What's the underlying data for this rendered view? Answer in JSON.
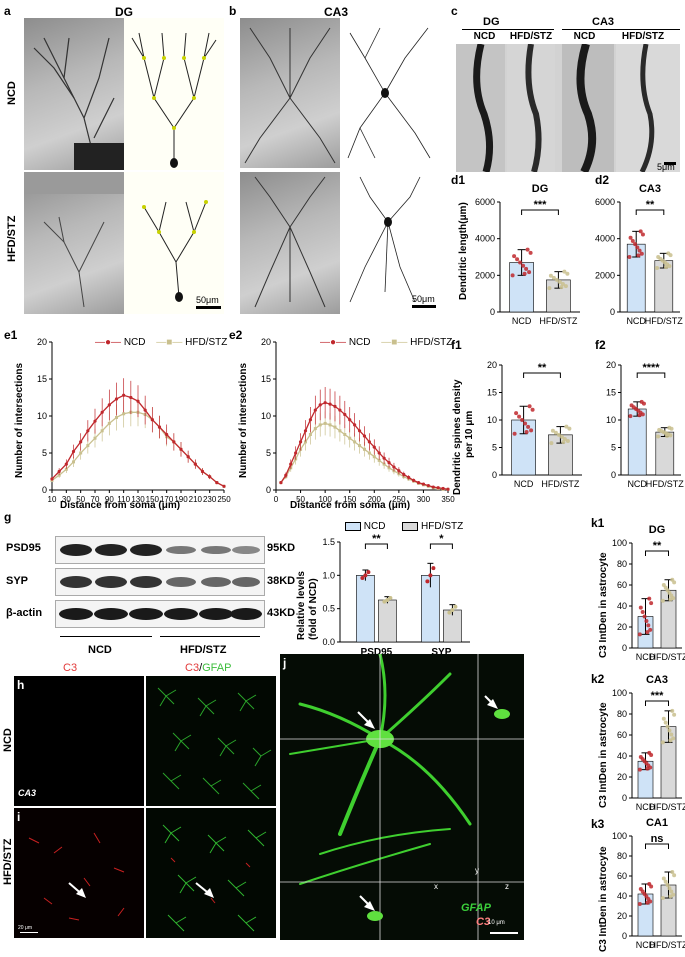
{
  "panel_a": {
    "letter": "a",
    "region": "DG",
    "row_ncd": "NCD",
    "row_hfd": "HFD/STZ",
    "scale": "50μm"
  },
  "panel_b": {
    "letter": "b",
    "region": "CA3",
    "scale": "50μm"
  },
  "panel_c": {
    "letter": "c",
    "group_dg": "DG",
    "group_ca3": "CA3",
    "cols": [
      "NCD",
      "HFD/STZ",
      "NCD",
      "HFD/STZ"
    ],
    "scale": "5μm"
  },
  "panel_d1": {
    "letter": "d1",
    "title": "DG",
    "ylabel": "Dendritic length(μm)",
    "sig": "***"
  },
  "panel_d2": {
    "letter": "d2",
    "title": "CA3",
    "sig": "**"
  },
  "panel_e1": {
    "letter": "e1",
    "ylabel": "Number of intersections",
    "xlabel": "Distance from soma (μm)"
  },
  "panel_e2": {
    "letter": "e2",
    "ylabel": "Number of intersections",
    "xlabel": "Distance from soma (μm)"
  },
  "panel_f1": {
    "letter": "f1",
    "ylabel1": "Dendritic spines density",
    "ylabel2": "per 10 μm",
    "sig": "**"
  },
  "panel_f2": {
    "letter": "f2",
    "sig": "****"
  },
  "panel_g": {
    "letter": "g",
    "rows": [
      {
        "name": "PSD95",
        "kd": "95KD"
      },
      {
        "name": "SYP",
        "kd": "38KD"
      },
      {
        "name": "β-actin",
        "kd": "43KD"
      }
    ],
    "group_ncd": "NCD",
    "group_hfd": "HFD/STZ",
    "ylabel1": "Relative levels",
    "ylabel2": "(fold of NCD)",
    "sig_psd": "**",
    "sig_syp": "*"
  },
  "panel_k1": {
    "letter": "k1",
    "title": "DG",
    "sig": "**"
  },
  "panel_k2": {
    "letter": "k2",
    "title": "CA3",
    "sig": "***"
  },
  "panel_k3": {
    "letter": "k3",
    "title": "CA1",
    "sig": "ns"
  },
  "k_ylabel": "C3 IntDen in astrocyte",
  "panel_h": {
    "letter": "h",
    "c3": "C3",
    "c3gfap_c3": "C3",
    "c3gfap_slash": "/",
    "c3gfap_gfap": "GFAP",
    "row_ncd": "NCD",
    "row_hfd": "HFD/STZ",
    "ca3": "CA3",
    "scale": "20 μm"
  },
  "panel_i": {
    "letter": "i"
  },
  "panel_j": {
    "letter": "j",
    "gfap": "GFAP",
    "c3": "C3",
    "scale": "10 μm",
    "axis_x": "x",
    "axis_y": "y",
    "axis_z": "z"
  },
  "legend": {
    "ncd": "NCD",
    "hfd": "HFD/STZ"
  },
  "colors": {
    "ncd": "#c0282d",
    "hfd": "#c9c08e",
    "bar_ncd": "#cfe3f7",
    "bar_hfd": "#d9d9d9"
  },
  "chart_data": [
    {
      "id": "d1",
      "type": "bar",
      "title": "DG",
      "ylabel": "Dendritic length(μm)",
      "categories": [
        "NCD",
        "HFD/STZ"
      ],
      "values": [
        2700,
        1750
      ],
      "errors": [
        700,
        450
      ],
      "ylim": [
        0,
        6000
      ],
      "yticks": [
        0,
        2000,
        4000,
        6000
      ]
    },
    {
      "id": "d2",
      "type": "bar",
      "title": "CA3",
      "categories": [
        "NCD",
        "HFD/STZ"
      ],
      "values": [
        3700,
        2800
      ],
      "errors": [
        700,
        400
      ],
      "ylim": [
        0,
        6000
      ],
      "yticks": [
        0,
        2000,
        4000,
        6000
      ]
    },
    {
      "id": "e1",
      "type": "line",
      "xlabel": "Distance from soma (μm)",
      "ylabel": "Number of intersections",
      "x": [
        10,
        20,
        30,
        40,
        50,
        60,
        70,
        80,
        90,
        100,
        110,
        120,
        130,
        140,
        150,
        160,
        170,
        180,
        190,
        200,
        210,
        220,
        230,
        240,
        250
      ],
      "xticks": [
        10,
        30,
        50,
        70,
        90,
        110,
        130,
        150,
        170,
        190,
        210,
        230,
        250
      ],
      "ylim": [
        0,
        20
      ],
      "yticks": [
        0,
        5,
        10,
        15,
        20
      ],
      "series": [
        {
          "name": "NCD",
          "values": [
            1.5,
            2.5,
            3.5,
            5.2,
            6.5,
            8,
            9.3,
            10.5,
            11.5,
            12.3,
            12.8,
            12.5,
            12,
            10.8,
            9.5,
            8.5,
            7.5,
            6.5,
            5.5,
            4.5,
            3.5,
            2.5,
            1.8,
            1,
            0.5
          ]
        },
        {
          "name": "HFD/STZ",
          "values": [
            1.3,
            2,
            2.8,
            3.8,
            5,
            6,
            7,
            8,
            9,
            9.8,
            10.3,
            10.5,
            10.5,
            10.2,
            9.5,
            8.5,
            7.2,
            6.5,
            5.5,
            4.5,
            3.5,
            2.5,
            1.8,
            1,
            0.5
          ]
        }
      ]
    },
    {
      "id": "e2",
      "type": "line",
      "xlabel": "Distance from soma (μm)",
      "ylabel": "Number of intersections",
      "x": [
        10,
        20,
        30,
        40,
        50,
        60,
        70,
        80,
        90,
        100,
        110,
        120,
        130,
        140,
        150,
        160,
        170,
        180,
        190,
        200,
        210,
        220,
        230,
        240,
        250,
        260,
        270,
        280,
        290,
        300,
        310,
        320,
        330,
        340,
        350
      ],
      "xticks": [
        0,
        50,
        100,
        150,
        200,
        250,
        300,
        350
      ],
      "ylim": [
        0,
        20
      ],
      "yticks": [
        0,
        5,
        10,
        15,
        20
      ],
      "series": [
        {
          "name": "NCD",
          "values": [
            1,
            2,
            3.5,
            5,
            6.5,
            8,
            9.5,
            10.8,
            11.5,
            11.8,
            11.6,
            11.3,
            10.8,
            10.2,
            9.5,
            8.8,
            8,
            7.3,
            6.5,
            5.8,
            5,
            4.3,
            3.7,
            3.1,
            2.6,
            2.1,
            1.7,
            1.3,
            1,
            0.8,
            0.6,
            0.4,
            0.3,
            0.2,
            0.1
          ]
        },
        {
          "name": "HFD/STZ",
          "values": [
            1,
            1.8,
            3,
            4.2,
            5.5,
            6.5,
            7.5,
            8.3,
            8.8,
            9,
            8.8,
            8.5,
            8,
            7.5,
            7,
            6.5,
            6,
            5.5,
            5,
            4.5,
            4,
            3.5,
            3,
            2.6,
            2.2,
            1.8,
            1.5,
            1.2,
            0.9,
            0.7,
            0.5,
            0.3,
            0.2,
            0.1,
            0.1
          ]
        }
      ]
    },
    {
      "id": "f1",
      "type": "bar",
      "ylabel": "Dendritic spines density per 10 μm",
      "categories": [
        "NCD",
        "HFD/STZ"
      ],
      "values": [
        10,
        7.3
      ],
      "errors": [
        2.5,
        1.5
      ],
      "ylim": [
        0,
        20
      ],
      "yticks": [
        0,
        5,
        10,
        15,
        20
      ]
    },
    {
      "id": "f2",
      "type": "bar",
      "categories": [
        "NCD",
        "HFD/STZ"
      ],
      "values": [
        12,
        7.8
      ],
      "errors": [
        1.3,
        0.8
      ],
      "ylim": [
        0,
        20
      ],
      "yticks": [
        0,
        5,
        10,
        15,
        20
      ]
    },
    {
      "id": "g",
      "type": "bar",
      "ylabel": "Relative levels (fold of NCD)",
      "categories": [
        "PSD95",
        "SYP"
      ],
      "series": [
        {
          "name": "NCD",
          "values": [
            1.0,
            1.0
          ],
          "errors": [
            0.08,
            0.18
          ]
        },
        {
          "name": "HFD/STZ",
          "values": [
            0.63,
            0.48
          ],
          "errors": [
            0.05,
            0.08
          ]
        }
      ],
      "ylim": [
        0,
        1.5
      ],
      "yticks": [
        0,
        0.5,
        1.0,
        1.5
      ]
    },
    {
      "id": "k1",
      "type": "bar",
      "title": "DG",
      "ylabel": "C3 IntDen in astrocyte",
      "categories": [
        "NCD",
        "HFD/STZ"
      ],
      "values": [
        30,
        55
      ],
      "errors": [
        17,
        10
      ],
      "ylim": [
        0,
        100
      ],
      "yticks": [
        0,
        20,
        40,
        60,
        80,
        100
      ]
    },
    {
      "id": "k2",
      "type": "bar",
      "title": "CA3",
      "ylabel": "C3 IntDen in astrocyte",
      "categories": [
        "NCD",
        "HFD/STZ"
      ],
      "values": [
        35,
        68
      ],
      "errors": [
        8,
        15
      ],
      "ylim": [
        0,
        100
      ],
      "yticks": [
        0,
        20,
        40,
        60,
        80,
        100
      ]
    },
    {
      "id": "k3",
      "type": "bar",
      "title": "CA1",
      "ylabel": "C3 IntDen in astrocyte",
      "categories": [
        "NCD",
        "HFD/STZ"
      ],
      "values": [
        42,
        51
      ],
      "errors": [
        10,
        13
      ],
      "ylim": [
        0,
        100
      ],
      "yticks": [
        0,
        20,
        40,
        60,
        80,
        100
      ]
    }
  ]
}
